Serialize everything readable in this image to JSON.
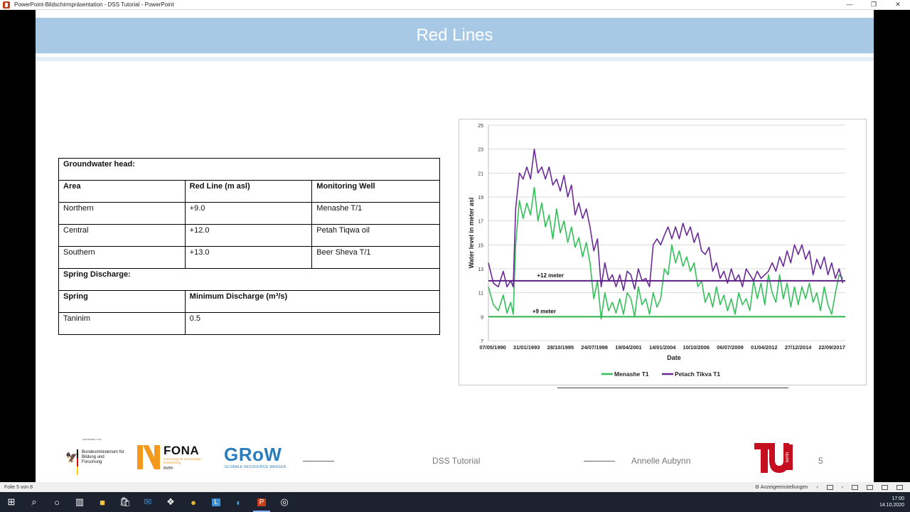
{
  "window": {
    "title": "PowerPoint-Bildschirmpräsentation  -  DSS Tutorial - PowerPoint",
    "controls": [
      "—",
      "❐",
      "✕"
    ]
  },
  "slide": {
    "title": "Red Lines",
    "table": {
      "sections": [
        {
          "heading": "Groundwater head:",
          "header": [
            "Area",
            "Red Line (m asl)",
            "Monitoring Well"
          ],
          "rows": [
            [
              "Northern",
              "+9.0",
              "Menashe T/1"
            ],
            [
              "Central",
              "+12.0",
              "Petah Tiqwa oil"
            ],
            [
              "Southern",
              "+13.0",
              "Beer Sheva T/1"
            ]
          ]
        },
        {
          "heading": "Spring Discharge:",
          "header": [
            "Spring",
            "Minimum Discharge (m³/s)"
          ],
          "rows": [
            [
              "Taninim",
              "0.5"
            ]
          ]
        }
      ]
    },
    "footer": {
      "presentation": "DSS Tutorial",
      "author": "Annelle Aubynn",
      "page": "5",
      "logos": {
        "bmbf_top": "GEFÖRDERT VOM",
        "bmbf_text": "Bundesministerium für Bildung und Forschung",
        "fona_name": "FONA",
        "fona_sub": "Forschung für Nachhaltige Entwicklung",
        "fona_bmbf": "BMBF",
        "grow_name": "GRoW",
        "grow_sub": "GLOBALE RESSOURCE WASSER",
        "tu_side": "berlin"
      }
    }
  },
  "chart_data": {
    "type": "line",
    "xlabel": "Date",
    "ylabel": "Water level in meter asl",
    "ylim": [
      7,
      25
    ],
    "yticks": [
      7,
      9,
      11,
      13,
      15,
      17,
      19,
      21,
      23,
      25
    ],
    "xtick_labels": [
      "07/05/1990",
      "31/01/1993",
      "28/10/1995",
      "24/07/1998",
      "19/04/2001",
      "14/01/2004",
      "10/10/2006",
      "06/07/2009",
      "01/04/2012",
      "27/12/2014",
      "22/09/2017"
    ],
    "x_years": [
      1990.35,
      1993.08,
      1995.82,
      1998.56,
      2001.3,
      2004.04,
      2006.77,
      2009.51,
      2012.25,
      2014.99,
      2017.72
    ],
    "grid": true,
    "legend": "bottom",
    "annotations": [
      {
        "text": "+12 meter",
        "x": 1995.0,
        "y": 12.3
      },
      {
        "text": "+9 meter",
        "x": 1994.5,
        "y": 9.3
      }
    ],
    "reference_lines": [
      {
        "label": "+12 meter",
        "y": 12,
        "color": "#5b1f86"
      },
      {
        "label": "+9 meter",
        "y": 9,
        "color": "#2fb24c"
      }
    ],
    "series": [
      {
        "name": "Menashe T1",
        "color": "#33c05a",
        "x": [
          1990.0,
          1990.4,
          1990.8,
          1991.2,
          1991.5,
          1991.8,
          1992.0,
          1992.2,
          1992.5,
          1992.8,
          1993.1,
          1993.4,
          1993.7,
          1994.0,
          1994.3,
          1994.6,
          1994.9,
          1995.2,
          1995.5,
          1995.8,
          1996.1,
          1996.4,
          1996.7,
          1997.0,
          1997.3,
          1997.6,
          1997.9,
          1998.2,
          1998.5,
          1998.8,
          1999.1,
          1999.4,
          1999.7,
          2000.0,
          2000.3,
          2000.6,
          2000.9,
          2001.2,
          2001.5,
          2001.8,
          2002.1,
          2002.4,
          2002.7,
          2003.0,
          2003.3,
          2003.6,
          2003.9,
          2004.2,
          2004.5,
          2004.8,
          2005.1,
          2005.4,
          2005.7,
          2006.0,
          2006.3,
          2006.6,
          2006.9,
          2007.2,
          2007.5,
          2007.8,
          2008.1,
          2008.4,
          2008.7,
          2009.0,
          2009.3,
          2009.6,
          2009.9,
          2010.2,
          2010.5,
          2010.8,
          2011.1,
          2011.4,
          2011.7,
          2012.0,
          2012.3,
          2012.6,
          2012.9,
          2013.2,
          2013.5,
          2013.8,
          2014.1,
          2014.4,
          2014.7,
          2015.0,
          2015.3,
          2015.6,
          2015.9,
          2016.2,
          2016.5,
          2016.8,
          2017.1,
          2017.4,
          2017.7,
          2018.0,
          2018.3,
          2018.6
        ],
        "y": [
          11.5,
          10.0,
          9.5,
          10.8,
          9.3,
          10.2,
          9.2,
          15.0,
          18.7,
          17.2,
          18.5,
          17.5,
          19.8,
          17.0,
          18.5,
          16.5,
          17.5,
          15.5,
          18.0,
          16.0,
          17.0,
          15.2,
          16.5,
          14.8,
          15.6,
          14.0,
          15.2,
          13.5,
          10.5,
          12.0,
          8.8,
          11.0,
          9.5,
          10.2,
          9.3,
          10.5,
          9.2,
          11.0,
          10.5,
          9.0,
          11.5,
          10.0,
          10.5,
          9.2,
          11.0,
          9.8,
          10.5,
          13.0,
          12.5,
          15.0,
          13.5,
          14.5,
          13.2,
          14.0,
          12.8,
          13.5,
          11.5,
          12.0,
          10.2,
          11.0,
          9.8,
          11.5,
          10.0,
          10.8,
          9.5,
          10.5,
          9.2,
          11.0,
          10.0,
          10.5,
          9.5,
          12.0,
          10.5,
          11.8,
          10.0,
          12.5,
          11.0,
          10.2,
          12.5,
          10.5,
          11.8,
          9.8,
          11.5,
          10.0,
          11.5,
          10.5,
          11.8,
          10.2,
          11.0,
          9.5,
          11.5,
          10.0,
          9.2,
          11.0,
          12.5,
          12.2
        ]
      },
      {
        "name": "Petach Tikva T1",
        "color": "#6a2a96",
        "x": [
          1990.0,
          1990.4,
          1990.8,
          1991.2,
          1991.5,
          1991.8,
          1992.0,
          1992.2,
          1992.5,
          1992.8,
          1993.1,
          1993.4,
          1993.7,
          1994.0,
          1994.3,
          1994.6,
          1994.9,
          1995.2,
          1995.5,
          1995.8,
          1996.1,
          1996.4,
          1996.7,
          1997.0,
          1997.3,
          1997.6,
          1997.9,
          1998.2,
          1998.5,
          1998.8,
          1999.1,
          1999.4,
          1999.7,
          2000.0,
          2000.3,
          2000.6,
          2000.9,
          2001.2,
          2001.5,
          2001.8,
          2002.1,
          2002.4,
          2002.7,
          2003.0,
          2003.3,
          2003.6,
          2003.9,
          2004.2,
          2004.5,
          2004.8,
          2005.1,
          2005.4,
          2005.7,
          2006.0,
          2006.3,
          2006.6,
          2006.9,
          2007.2,
          2007.5,
          2007.8,
          2008.1,
          2008.4,
          2008.7,
          2009.0,
          2009.3,
          2009.6,
          2009.9,
          2010.2,
          2010.5,
          2010.8,
          2011.1,
          2011.4,
          2011.7,
          2012.0,
          2012.3,
          2012.6,
          2012.9,
          2013.2,
          2013.5,
          2013.8,
          2014.1,
          2014.4,
          2014.7,
          2015.0,
          2015.3,
          2015.6,
          2015.9,
          2016.2,
          2016.5,
          2016.8,
          2017.1,
          2017.4,
          2017.7,
          2018.0,
          2018.3,
          2018.6
        ],
        "y": [
          13.5,
          11.8,
          11.5,
          12.8,
          11.5,
          12.0,
          11.5,
          18.0,
          21.0,
          20.5,
          21.5,
          20.5,
          23.0,
          21.0,
          21.5,
          20.5,
          21.5,
          20.0,
          20.5,
          19.5,
          20.8,
          19.0,
          20.0,
          17.5,
          18.5,
          17.2,
          18.0,
          16.5,
          14.5,
          15.5,
          11.5,
          13.5,
          12.0,
          12.5,
          11.5,
          12.5,
          11.2,
          12.8,
          12.5,
          11.3,
          13.0,
          12.0,
          12.2,
          11.5,
          15.0,
          15.5,
          15.0,
          15.8,
          16.5,
          15.5,
          16.5,
          15.5,
          16.8,
          15.8,
          16.5,
          15.2,
          16.0,
          14.5,
          14.2,
          14.8,
          12.8,
          13.5,
          12.2,
          12.8,
          11.8,
          13.0,
          12.0,
          12.5,
          11.5,
          13.0,
          12.5,
          12.0,
          12.8,
          12.2,
          12.5,
          12.8,
          13.5,
          12.8,
          14.0,
          13.2,
          14.5,
          13.5,
          15.0,
          14.2,
          15.0,
          13.8,
          14.5,
          12.5,
          13.8,
          13.0,
          14.0,
          12.5,
          13.5,
          12.2,
          13.0,
          11.8
        ]
      }
    ]
  },
  "statusbar": {
    "slide_info": "Folie 5 von 8",
    "display_settings": "Anzeigeeinstellungen"
  },
  "taskbar": {
    "time": "17:00",
    "date": "14.10.2020"
  }
}
